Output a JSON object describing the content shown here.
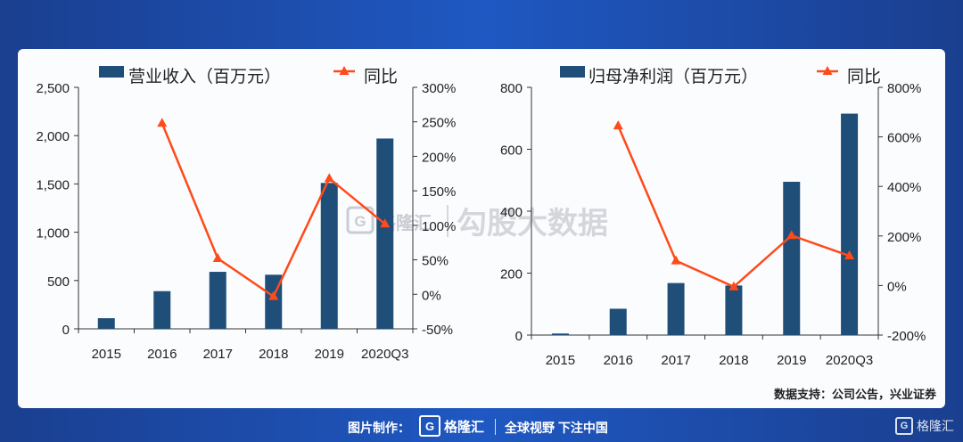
{
  "source_note": "数据支持：公司公告，兴业证券",
  "watermark": {
    "brand": "格隆汇",
    "text": "勾股大数据"
  },
  "footer": {
    "credit": "图片制作：",
    "logo_mark": "G",
    "logo_name": "格隆汇",
    "slogan": "全球视野 下注中国",
    "corner_name": "格隆汇"
  },
  "colors": {
    "bar": "#1f4e79",
    "line": "#ff4a1a"
  },
  "chart_data": [
    {
      "type": "bar",
      "categories": [
        "2015",
        "2016",
        "2017",
        "2018",
        "2019",
        "2020Q3"
      ],
      "series": [
        {
          "name": "营业收入（百万元）",
          "type": "bar",
          "axis": "left",
          "values": [
            110,
            390,
            590,
            560,
            1510,
            1970
          ]
        },
        {
          "name": "同比",
          "type": "line",
          "axis": "right",
          "values": [
            null,
            248,
            52,
            -3,
            168,
            102
          ]
        }
      ],
      "left_axis": {
        "ticks": [
          "2,500",
          "2,000",
          "1,500",
          "1,000",
          "500",
          "0"
        ],
        "ylim": [
          0,
          2500
        ]
      },
      "right_axis": {
        "ticks": [
          "300%",
          "250%",
          "200%",
          "150%",
          "100%",
          "50%",
          "0%",
          "-50%"
        ],
        "ylim": [
          -50,
          300
        ]
      },
      "legend": "top"
    },
    {
      "type": "bar",
      "categories": [
        "2015",
        "2016",
        "2017",
        "2018",
        "2019",
        "2020Q3"
      ],
      "series": [
        {
          "name": "归母净利润（百万元）",
          "type": "bar",
          "axis": "left",
          "values": [
            5,
            85,
            168,
            160,
            495,
            715
          ]
        },
        {
          "name": "同比",
          "type": "line",
          "axis": "right",
          "values": [
            null,
            645,
            100,
            -5,
            202,
            120
          ]
        }
      ],
      "left_axis": {
        "ticks": [
          "800",
          "600",
          "400",
          "200",
          "0"
        ],
        "ylim": [
          0,
          800
        ]
      },
      "right_axis": {
        "ticks": [
          "800%",
          "600%",
          "400%",
          "200%",
          "0%",
          "-200%"
        ],
        "ylim": [
          -200,
          800
        ]
      },
      "legend": "top"
    }
  ]
}
